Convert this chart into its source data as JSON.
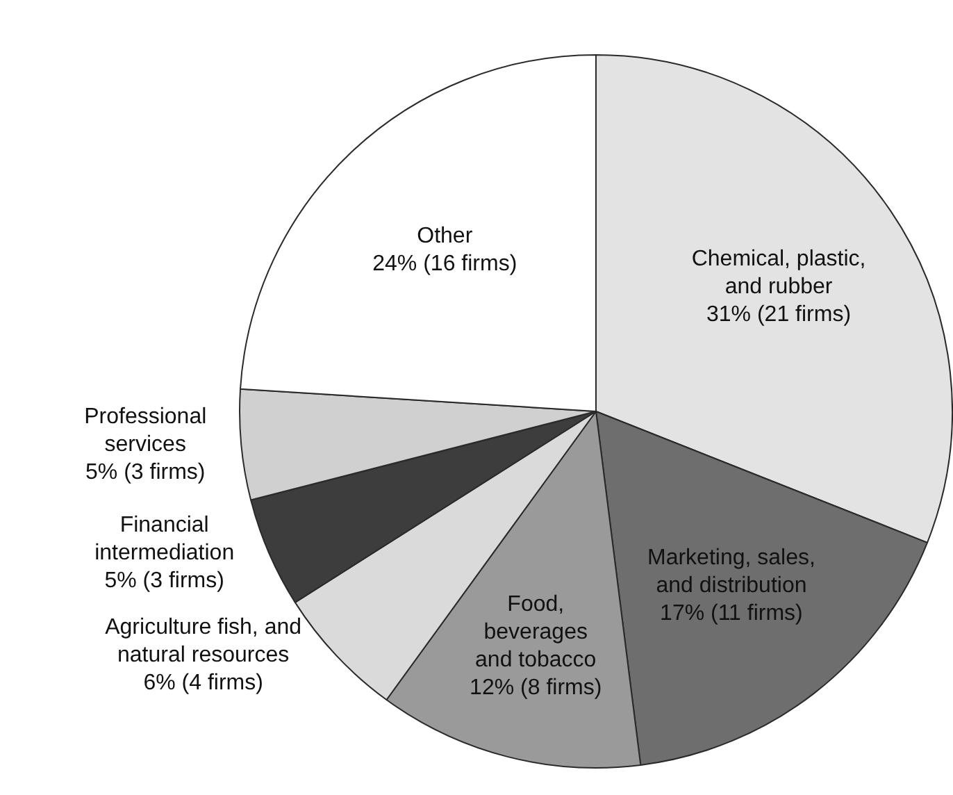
{
  "chart_data": {
    "type": "pie",
    "categories": [
      "Chemical, plastic, and rubber",
      "Marketing, sales, and distribution",
      "Food, beverages and tobacco",
      "Agriculture fish, and natural resources",
      "Financial intermediation",
      "Professional services",
      "Other"
    ],
    "values": [
      31,
      17,
      12,
      6,
      5,
      5,
      24
    ],
    "colors": [
      "#e3e3e3",
      "#6e6e6e",
      "#9a9a9a",
      "#dadada",
      "#3d3d3d",
      "#d0d0d0",
      "#ffffff"
    ],
    "value_labels": [
      "31% (21 firms)",
      "17% (11 firms)",
      "12% (8 firms)",
      "6% (4 firms)",
      "5% (3 firms)",
      "5% (3 firms)",
      "24% (16 firms)"
    ],
    "legend": false
  }
}
